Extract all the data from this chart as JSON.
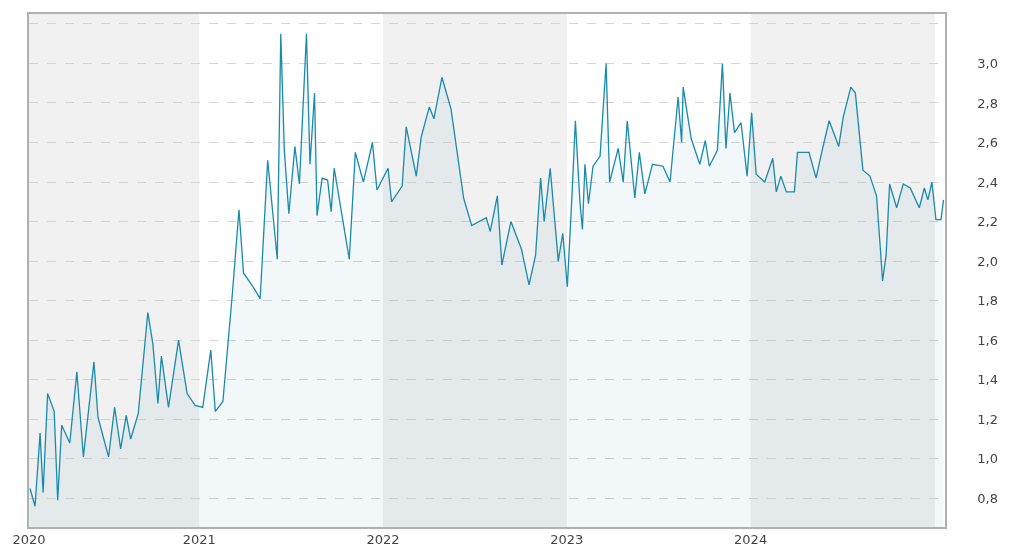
{
  "chart_data": {
    "type": "area",
    "x": [
      "2020-01-31",
      "2020-02-10",
      "2020-02-20",
      "2020-02-26",
      "2020-03-06",
      "2020-03-19",
      "2020-03-26",
      "2020-04-03",
      "2020-04-19",
      "2020-05-03",
      "2020-05-16",
      "2020-06-06",
      "2020-06-14",
      "2020-07-05",
      "2020-07-17",
      "2020-07-29",
      "2020-08-09",
      "2020-08-18",
      "2020-09-02",
      "2020-09-21",
      "2020-10-01",
      "2020-10-11",
      "2020-10-18",
      "2020-11-01",
      "2020-11-21",
      "2020-12-08",
      "2020-12-24",
      "2021-01-08",
      "2021-01-24",
      "2021-02-02",
      "2021-02-17",
      "2021-03-08",
      "2021-03-21",
      "2021-03-30",
      "2021-04-18",
      "2021-05-02",
      "2021-05-17",
      "2021-06-05",
      "2021-06-12",
      "2021-06-19",
      "2021-06-28",
      "2021-07-10",
      "2021-07-19",
      "2021-08-02",
      "2021-08-09",
      "2021-08-18",
      "2021-08-23",
      "2021-09-02",
      "2021-09-13",
      "2021-09-20",
      "2021-09-26",
      "2021-10-26",
      "2021-11-07",
      "2021-11-23",
      "2021-12-11",
      "2021-12-20",
      "2022-01-11",
      "2022-01-18",
      "2022-02-08",
      "2022-02-16",
      "2022-03-08",
      "2022-03-18",
      "2022-04-03",
      "2022-04-12",
      "2022-04-28",
      "2022-05-16",
      "2022-06-10",
      "2022-06-26",
      "2022-07-25",
      "2022-08-02",
      "2022-08-16",
      "2022-08-25",
      "2022-09-12",
      "2022-10-03",
      "2022-10-18",
      "2022-10-31",
      "2022-11-10",
      "2022-11-17",
      "2022-11-29",
      "2022-12-15",
      "2022-12-24",
      "2023-01-02",
      "2023-01-11",
      "2023-01-18",
      "2023-01-27",
      "2023-02-01",
      "2023-02-06",
      "2023-02-13",
      "2023-02-22",
      "2023-03-08",
      "2023-03-20",
      "2023-03-27",
      "2023-04-13",
      "2023-04-23",
      "2023-05-01",
      "2023-05-16",
      "2023-05-25",
      "2023-06-05",
      "2023-06-20",
      "2023-07-11",
      "2023-07-25",
      "2023-08-10",
      "2023-08-17",
      "2023-08-20",
      "2023-09-05",
      "2023-09-22",
      "2023-10-03",
      "2023-10-11",
      "2023-10-27",
      "2023-11-06",
      "2023-11-13",
      "2023-11-21",
      "2023-11-30",
      "2023-12-13",
      "2023-12-25",
      "2024-01-03",
      "2024-01-12",
      "2024-01-29",
      "2024-02-14",
      "2024-02-21",
      "2024-03-01",
      "2024-03-12",
      "2024-03-28",
      "2024-04-03",
      "2024-04-26",
      "2024-05-10",
      "2024-05-22",
      "2024-06-05",
      "2024-06-24",
      "2024-07-03",
      "2024-07-18",
      "2024-07-27",
      "2024-08-11",
      "2024-08-25",
      "2024-09-07",
      "2024-09-15",
      "2024-09-19",
      "2024-09-26",
      "2024-10-03",
      "2024-10-17",
      "2024-10-30",
      "2024-11-13",
      "2024-12-01",
      "2024-12-11",
      "2024-12-18",
      "2024-12-26",
      "2025-01-03",
      "2025-01-13",
      "2025-01-18"
    ],
    "series": [
      {
        "color": "#1a8aad",
        "values": [
          0.85,
          0.76,
          1.13,
          0.83,
          1.33,
          1.24,
          0.79,
          1.17,
          1.08,
          1.44,
          1.01,
          1.49,
          1.21,
          1.01,
          1.26,
          1.05,
          1.22,
          1.1,
          1.23,
          1.74,
          1.58,
          1.28,
          1.52,
          1.26,
          1.6,
          1.33,
          1.27,
          1.26,
          1.55,
          1.24,
          1.29,
          1.84,
          2.26,
          1.94,
          1.87,
          1.81,
          2.51,
          2.01,
          3.15,
          2.56,
          2.24,
          2.58,
          2.39,
          3.15,
          2.49,
          2.85,
          2.23,
          2.42,
          2.41,
          2.25,
          2.47,
          2.01,
          2.55,
          2.4,
          2.6,
          2.36,
          2.47,
          2.3,
          2.38,
          2.68,
          2.43,
          2.63,
          2.78,
          2.72,
          2.93,
          2.77,
          2.32,
          2.18,
          2.22,
          2.15,
          2.33,
          1.98,
          2.2,
          2.06,
          1.88,
          2.03,
          2.42,
          2.2,
          2.47,
          2.0,
          2.14,
          1.87,
          2.32,
          2.71,
          2.3,
          2.16,
          2.49,
          2.29,
          2.48,
          2.53,
          3.0,
          2.4,
          2.57,
          2.4,
          2.71,
          2.32,
          2.55,
          2.34,
          2.49,
          2.48,
          2.4,
          2.83,
          2.6,
          2.88,
          2.62,
          2.49,
          2.61,
          2.48,
          2.56,
          3.0,
          2.57,
          2.85,
          2.65,
          2.7,
          2.43,
          2.75,
          2.44,
          2.4,
          2.52,
          2.35,
          2.43,
          2.35,
          2.35,
          2.55,
          2.55,
          2.42,
          2.56,
          2.71,
          2.58,
          2.73,
          2.88,
          2.85,
          2.46,
          2.43,
          2.33,
          2.05,
          1.9,
          2.03,
          2.39,
          2.27,
          2.39,
          2.37,
          2.27,
          2.37,
          2.31,
          2.4,
          2.21,
          2.21,
          2.31
        ]
      }
    ],
    "xlim": [
      "2020-01-29",
      "2025-01-21"
    ],
    "xticks": [
      {
        "value": "2020-01-29",
        "label": "2020"
      },
      {
        "value": "2021-01-01",
        "label": "2021"
      },
      {
        "value": "2022-01-01",
        "label": "2022"
      },
      {
        "value": "2023-01-01",
        "label": "2023"
      },
      {
        "value": "2024-01-01",
        "label": "2024"
      }
    ],
    "ylim": [
      0.655,
      3.25
    ],
    "yticks": [
      {
        "value": 0.8,
        "label": "0,8"
      },
      {
        "value": 1.0,
        "label": "1,0"
      },
      {
        "value": 1.2,
        "label": "1,2"
      },
      {
        "value": 1.4,
        "label": "1,4"
      },
      {
        "value": 1.6,
        "label": "1,6"
      },
      {
        "value": 1.8,
        "label": "1,8"
      },
      {
        "value": 2.0,
        "label": "2,0"
      },
      {
        "value": 2.2,
        "label": "2,2"
      },
      {
        "value": 2.4,
        "label": "2,4"
      },
      {
        "value": 2.6,
        "label": "2,6"
      },
      {
        "value": 2.8,
        "label": "2,8"
      },
      {
        "value": 3.0,
        "label": "3,0"
      },
      {
        "value": 3.2,
        "label": null
      }
    ],
    "bands": [
      {
        "axis": "x",
        "from": "2020-01-29",
        "to": "2021-01-01",
        "color": "#f1f1f1"
      },
      {
        "axis": "x",
        "from": "2022-01-01",
        "to": "2023-01-01",
        "color": "#f1f1f1"
      },
      {
        "axis": "x",
        "from": "2024-01-01",
        "to": "2025-01-01",
        "color": "#f1f1f1"
      }
    ],
    "grid": "y",
    "marker": "none",
    "line_style": "solid"
  }
}
